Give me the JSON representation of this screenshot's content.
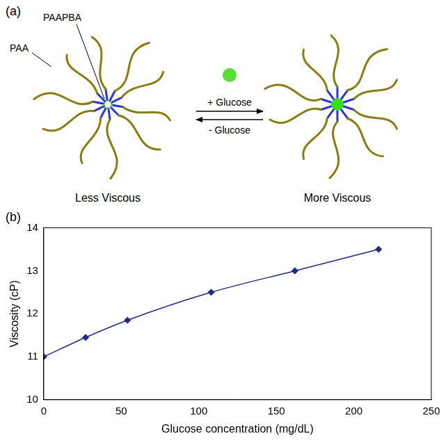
{
  "diagram": {
    "panel_label": "(a)",
    "labels": {
      "core": "PAAPBA",
      "arm": "PAA",
      "forward": "+ Glucose",
      "reverse": "- Glucose",
      "left_state": "Less Viscous",
      "right_state": "More Viscous"
    }
  },
  "chart_data": {
    "type": "line",
    "title": "(b)",
    "xlabel": "Glucose concentration (mg/dL)",
    "ylabel": "Viscosity (cP)",
    "x": [
      0,
      27,
      54,
      108,
      162,
      216
    ],
    "values": [
      11.0,
      11.45,
      11.85,
      12.5,
      13.0,
      13.5
    ],
    "color": "#1f2a80",
    "marker": "diamond",
    "xlim": [
      0,
      250
    ],
    "xticks": [
      0,
      50,
      100,
      150,
      200,
      250
    ],
    "ylim": [
      10,
      14
    ],
    "yticks": [
      10,
      11,
      12,
      13,
      14
    ],
    "grid": false
  }
}
